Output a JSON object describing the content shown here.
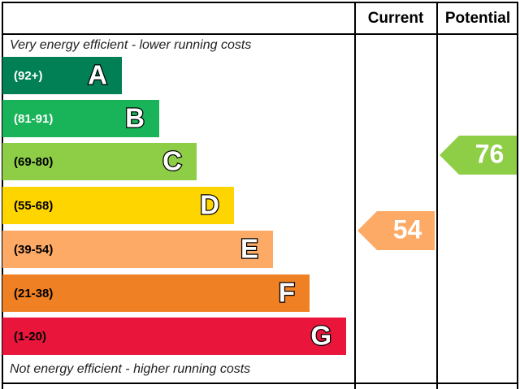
{
  "header": {
    "current": "Current",
    "potential": "Potential"
  },
  "top_note": "Very energy efficient - lower running costs",
  "bottom_note": "Not energy efficient - higher running costs",
  "bands": [
    {
      "range": "(92+)",
      "letter": "A",
      "color": "#008054"
    },
    {
      "range": "(81-91)",
      "letter": "B",
      "color": "#19b459"
    },
    {
      "range": "(69-80)",
      "letter": "C",
      "color": "#8dce46"
    },
    {
      "range": "(55-68)",
      "letter": "D",
      "color": "#ffd500"
    },
    {
      "range": "(39-54)",
      "letter": "E",
      "color": "#fcaa65"
    },
    {
      "range": "(21-38)",
      "letter": "F",
      "color": "#ef8023"
    },
    {
      "range": "(1-20)",
      "letter": "G",
      "color": "#e9153b"
    }
  ],
  "current": {
    "value": 54,
    "color": "#fcaa65"
  },
  "potential": {
    "value": 76,
    "color": "#8dce46"
  }
}
